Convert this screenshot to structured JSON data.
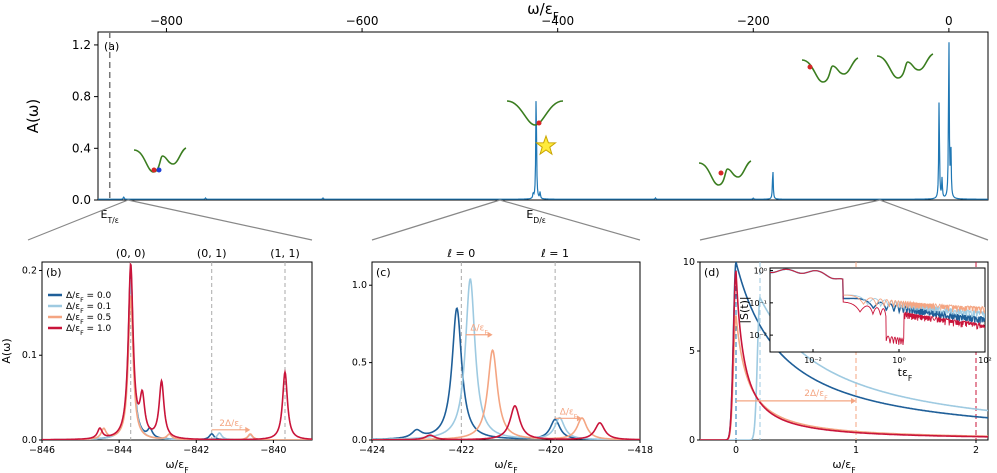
{
  "chart_data": [
    {
      "id": "a",
      "type": "line",
      "panel_label": "(a)",
      "xlabel": "ω/ε_F",
      "ylabel": "A(ω)",
      "xlim": [
        -870,
        40
      ],
      "ylim": [
        0,
        1.3
      ],
      "xticks": [
        -800,
        -600,
        -400,
        -200,
        0
      ],
      "xtick_labels": [
        "−800",
        "−600",
        "−400",
        "−200",
        "0"
      ],
      "yticks": [
        0,
        0.4,
        0.8,
        1.2
      ],
      "ytick_labels": [
        "0.0",
        "0.4",
        "0.8",
        "1.2"
      ],
      "x_axis_position": "top",
      "markers": [
        {
          "x": -858,
          "label": "E_T/ε_F"
        },
        {
          "x": -422,
          "label": "E_D/ε_F"
        }
      ],
      "series": [
        {
          "color": "#1f77b4",
          "peaks": [
            {
              "x": -843.7,
              "y": 0.02
            },
            {
              "x": -760,
              "y": 0.01
            },
            {
              "x": -640,
              "y": 0.01
            },
            {
              "x": -425,
              "y": 0.04
            },
            {
              "x": -422,
              "y": 0.85
            },
            {
              "x": -418,
              "y": 0.05
            },
            {
              "x": -300,
              "y": 0.01
            },
            {
              "x": -200,
              "y": 0.01
            },
            {
              "x": -180,
              "y": 0.24
            },
            {
              "x": -10,
              "y": 0.78
            },
            {
              "x": -7,
              "y": 0.15
            },
            {
              "x": 0,
              "y": 1.28
            },
            {
              "x": 2,
              "y": 0.4
            }
          ]
        }
      ],
      "zoom_regions": [
        {
          "x": -858,
          "to_panel": "b"
        },
        {
          "x": -422,
          "to_panel": "c"
        },
        {
          "x": 0,
          "to_panel": "d"
        }
      ]
    },
    {
      "id": "b",
      "type": "line",
      "panel_label": "(b)",
      "xlabel": "ω/ε_F",
      "ylabel": "A(ω)",
      "xlim": [
        -846,
        -839
      ],
      "ylim": [
        0,
        0.21
      ],
      "xticks": [
        -846,
        -844,
        -842,
        -840
      ],
      "xtick_labels": [
        "−846",
        "−844",
        "−842",
        "−840"
      ],
      "yticks": [
        0,
        0.1,
        0.2
      ],
      "ytick_labels": [
        "0.0",
        "0.1",
        "0.2"
      ],
      "top_labels": [
        {
          "x": -843.7,
          "label": "(0, 0)"
        },
        {
          "x": -841.6,
          "label": "(0, 1)"
        },
        {
          "x": -839.7,
          "label": "(1, 1)"
        }
      ],
      "annotation": {
        "text": "2Δ/ε_F",
        "x_from": -841.6,
        "x_to": -840.6,
        "y": 0.012
      },
      "legend": {
        "position": "upper-left"
      },
      "series": [
        {
          "name": "Δ/ε_F = 0.0",
          "color": "#1f5f99",
          "peaks": [
            {
              "x": -843.7,
              "y": 0.2
            },
            {
              "x": -843.2,
              "y": 0.01
            },
            {
              "x": -841.6,
              "y": 0.007
            }
          ]
        },
        {
          "name": "Δ/ε_F = 0.1",
          "color": "#9ecae1",
          "peaks": [
            {
              "x": -843.7,
              "y": 0.19
            },
            {
              "x": -841.4,
              "y": 0.008
            },
            {
              "x": -840.6,
              "y": 0.006
            }
          ]
        },
        {
          "name": "Δ/ε_F = 0.5",
          "color": "#f4a582",
          "peaks": [
            {
              "x": -844.4,
              "y": 0.012
            },
            {
              "x": -843.7,
              "y": 0.17
            },
            {
              "x": -842.7,
              "y": 0.006
            },
            {
              "x": -840.6,
              "y": 0.007
            }
          ]
        },
        {
          "name": "Δ/ε_F = 1.0",
          "color": "#c9143a",
          "peaks": [
            {
              "x": -844.5,
              "y": 0.012
            },
            {
              "x": -843.7,
              "y": 0.205
            },
            {
              "x": -843.4,
              "y": 0.045
            },
            {
              "x": -842.9,
              "y": 0.067
            },
            {
              "x": -839.7,
              "y": 0.08
            }
          ]
        }
      ]
    },
    {
      "id": "c",
      "type": "line",
      "panel_label": "(c)",
      "xlabel": "ω/ε_F",
      "ylabel": "",
      "xlim": [
        -424,
        -418
      ],
      "ylim": [
        0,
        1.15
      ],
      "xticks": [
        -424,
        -422,
        -420,
        -418
      ],
      "xtick_labels": [
        "−424",
        "−422",
        "−420",
        "−418"
      ],
      "yticks": [
        0,
        0.5,
        1.0
      ],
      "ytick_labels": [
        "0.0",
        "0.5",
        "1.0"
      ],
      "top_labels": [
        {
          "x": -422,
          "label": "ℓ = 0"
        },
        {
          "x": -419.9,
          "label": "ℓ = 1"
        }
      ],
      "annotations": [
        {
          "text": "Δ/ε_F",
          "x_from": -421.9,
          "x_to": -421.3,
          "y": 0.68
        },
        {
          "text": "Δ/ε_F",
          "x_from": -419.9,
          "x_to": -419.3,
          "y": 0.14
        }
      ],
      "series": [
        {
          "name": "Δ/ε_F = 0.0",
          "color": "#1f5f99",
          "peaks": [
            {
              "x": -422.1,
              "y": 0.85
            },
            {
              "x": -419.9,
              "y": 0.13
            },
            {
              "x": -423.0,
              "y": 0.05
            }
          ]
        },
        {
          "name": "Δ/ε_F = 0.1",
          "color": "#9ecae1",
          "peaks": [
            {
              "x": -421.8,
              "y": 1.04
            },
            {
              "x": -419.8,
              "y": 0.14
            }
          ]
        },
        {
          "name": "Δ/ε_F = 0.5",
          "color": "#f4a582",
          "peaks": [
            {
              "x": -421.3,
              "y": 0.58
            },
            {
              "x": -419.3,
              "y": 0.14
            }
          ]
        },
        {
          "name": "Δ/ε_F = 1.0",
          "color": "#c9143a",
          "peaks": [
            {
              "x": -420.8,
              "y": 0.22
            },
            {
              "x": -418.9,
              "y": 0.11
            },
            {
              "x": -422.7,
              "y": 0.03
            }
          ]
        }
      ]
    },
    {
      "id": "d",
      "type": "line",
      "panel_label": "(d)",
      "xlabel": "ω/ε_F",
      "ylabel": "",
      "xlim": [
        -0.3,
        2.1
      ],
      "ylim": [
        0,
        10
      ],
      "xticks": [
        0,
        1,
        2
      ],
      "xtick_labels": [
        "0",
        "1",
        "2"
      ],
      "yticks": [
        0,
        5,
        10
      ],
      "ytick_labels": [
        "0",
        "5",
        "10"
      ],
      "vlines": [
        {
          "x": 0,
          "color": "#1f77b4"
        },
        {
          "x": 0.2,
          "color": "#9ecae1"
        },
        {
          "x": 1,
          "color": "#f4a582"
        },
        {
          "x": 2,
          "color": "#c9143a"
        }
      ],
      "annotation": {
        "text": "2Δ/ε_F",
        "x_from": 0,
        "x_to": 1,
        "y": 2.2
      },
      "series": [
        {
          "name": "Δ/ε_F = 0.0",
          "color": "#1f5f99",
          "edge": 0,
          "peak": 10,
          "decay": 0.45
        },
        {
          "name": "Δ/ε_F = 0.1",
          "color": "#9ecae1",
          "edge": 0.2,
          "peak": 8,
          "decay": 0.7
        },
        {
          "name": "Δ/ε_F = 0.5",
          "color": "#f4a582",
          "edge": 0,
          "peak": 7,
          "decay": 0.12
        },
        {
          "name": "Δ/ε_F = 1.0",
          "color": "#c9143a",
          "edge": 0,
          "peak": 9.5,
          "decay": 0.08
        }
      ],
      "inset": {
        "xlabel": "tε_F",
        "ylabel": "|S(t)|",
        "xscale": "log",
        "yscale": "log",
        "xlim": [
          0.001,
          100
        ],
        "ylim": [
          0.003,
          1.2
        ],
        "xticks": [
          0.01,
          1,
          100
        ],
        "xtick_labels": [
          "10⁻²",
          "10⁰",
          "10²"
        ],
        "yticks": [
          0.01,
          0.1,
          1
        ],
        "ytick_labels": [
          "10⁻²",
          "10⁻¹",
          "10⁰"
        ],
        "series": [
          {
            "name": "Δ/ε_F = 0.0",
            "color": "#1f5f99",
            "floor": 0.12,
            "tail": 0.035
          },
          {
            "name": "Δ/ε_F = 0.1",
            "color": "#9ecae1",
            "floor": 0.13,
            "tail": 0.08
          },
          {
            "name": "Δ/ε_F = 0.5",
            "color": "#f4a582",
            "floor": 0.1,
            "tail": 0.15
          },
          {
            "name": "Δ/ε_F = 1.0",
            "color": "#c9143a",
            "floor": 0.08,
            "tail": 0.02
          }
        ]
      }
    }
  ]
}
